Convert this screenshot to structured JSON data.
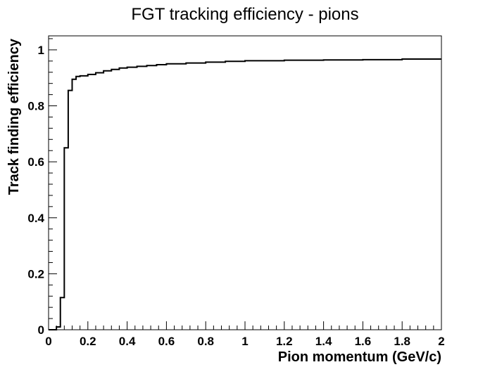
{
  "chart_data": {
    "type": "line",
    "title": "FGT tracking efficiency - pions",
    "xlabel": "Pion momentum (GeV/c)",
    "ylabel": "Track finding efficiency",
    "xlim": [
      0,
      2
    ],
    "ylim": [
      0,
      1.05
    ],
    "x_ticks": [
      0,
      0.2,
      0.4,
      0.6,
      0.8,
      1,
      1.2,
      1.4,
      1.6,
      1.8,
      2
    ],
    "x_tick_labels": [
      "0",
      "0.2",
      "0.4",
      "0.6",
      "0.8",
      "1",
      "1.2",
      "1.4",
      "1.6",
      "1.8",
      "2"
    ],
    "y_ticks": [
      0,
      0.2,
      0.4,
      0.6,
      0.8,
      1
    ],
    "y_tick_labels": [
      "0",
      "0.2",
      "0.4",
      "0.6",
      "0.8",
      "1"
    ],
    "grid": false,
    "series": [
      {
        "style": "histogram-step",
        "color": "#000000",
        "bin_edges": [
          0.0,
          0.02,
          0.04,
          0.06,
          0.08,
          0.1,
          0.12,
          0.14,
          0.16,
          0.2,
          0.24,
          0.28,
          0.32,
          0.36,
          0.4,
          0.45,
          0.5,
          0.55,
          0.6,
          0.7,
          0.8,
          0.9,
          1.0,
          1.2,
          1.4,
          1.6,
          1.8,
          2.0
        ],
        "values": [
          0.0,
          0.0,
          0.01,
          0.115,
          0.65,
          0.855,
          0.895,
          0.905,
          0.907,
          0.912,
          0.918,
          0.925,
          0.93,
          0.935,
          0.938,
          0.941,
          0.944,
          0.947,
          0.95,
          0.953,
          0.956,
          0.959,
          0.961,
          0.963,
          0.964,
          0.965,
          0.967
        ]
      }
    ]
  }
}
